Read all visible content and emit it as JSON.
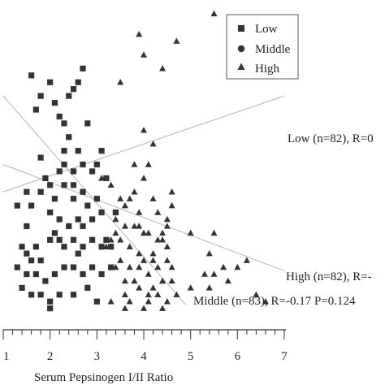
{
  "chart_data": {
    "type": "scatter",
    "title": "",
    "xlabel": "Serum Pepsinogen I/II Ratio",
    "ylabel": "",
    "xlim": [
      1,
      7
    ],
    "xticks": [
      "1",
      "2",
      "3",
      "4",
      "5",
      "6",
      "7"
    ],
    "legend_position": "top-right",
    "legend": [
      {
        "label": "Low",
        "marker": "square"
      },
      {
        "label": "Middle",
        "marker": "circle"
      },
      {
        "label": "High",
        "marker": "triangle"
      }
    ],
    "marker_color": "#333333",
    "line_color": "#b3b3b3",
    "annotations": [
      {
        "text": "Low (n=82), R=0"
      },
      {
        "text": "High (n=82), R=-"
      },
      {
        "text": "Middle (n=83), R=-0.17 P=0.124"
      }
    ],
    "series": [
      {
        "name": "Low",
        "marker": "square",
        "points": [
          [
            1.7,
            3.2
          ],
          [
            1.8,
            3.4
          ],
          [
            2.0,
            2.1
          ],
          [
            2.1,
            3.3
          ],
          [
            2.2,
            1.3
          ],
          [
            2.2,
            3.1
          ],
          [
            2.3,
            2.1
          ],
          [
            2.4,
            3.4
          ],
          [
            1.6,
            3.7
          ],
          [
            2.0,
            3.6
          ],
          [
            2.7,
            3.8
          ],
          [
            2.6,
            3.6
          ],
          [
            2.5,
            3.5
          ],
          [
            2.3,
            3.0
          ],
          [
            2.4,
            2.8
          ],
          [
            2.6,
            1.1
          ],
          [
            2.7,
            2.4
          ],
          [
            2.5,
            2.3
          ],
          [
            2.2,
            2.3
          ],
          [
            2.3,
            2.6
          ],
          [
            2.8,
            3.0
          ],
          [
            2.9,
            2.3
          ],
          [
            3.0,
            2.4
          ],
          [
            3.1,
            2.6
          ],
          [
            3.2,
            2.2
          ],
          [
            2.3,
            2.4
          ],
          [
            2.5,
            2.1
          ],
          [
            2.7,
            2.0
          ],
          [
            2.1,
            1.9
          ],
          [
            1.9,
            2.2
          ],
          [
            1.5,
            2.0
          ],
          [
            1.6,
            1.8
          ],
          [
            1.8,
            2.0
          ],
          [
            2.0,
            1.7
          ],
          [
            2.2,
            1.6
          ],
          [
            2.4,
            1.5
          ],
          [
            2.6,
            1.6
          ],
          [
            2.8,
            1.8
          ],
          [
            3.0,
            1.9
          ],
          [
            1.8,
            2.5
          ],
          [
            2.5,
            1.9
          ],
          [
            2.7,
            1.5
          ],
          [
            2.9,
            1.6
          ],
          [
            3.1,
            1.7
          ],
          [
            3.2,
            1.3
          ],
          [
            3.4,
            1.7
          ],
          [
            1.5,
            1.5
          ],
          [
            2.6,
            2.6
          ],
          [
            1.3,
            1.8
          ],
          [
            1.4,
            1.2
          ],
          [
            1.5,
            1.1
          ],
          [
            1.6,
            1.0
          ],
          [
            1.7,
            1.2
          ],
          [
            1.8,
            1.0
          ],
          [
            2.0,
            1.3
          ],
          [
            2.1,
            1.4
          ],
          [
            2.3,
            1.2
          ],
          [
            2.5,
            1.3
          ],
          [
            2.7,
            1.2
          ],
          [
            2.9,
            1.3
          ],
          [
            3.1,
            1.2
          ],
          [
            3.3,
            1.2
          ],
          [
            1.3,
            0.9
          ],
          [
            1.5,
            0.8
          ],
          [
            1.7,
            0.8
          ],
          [
            1.9,
            0.7
          ],
          [
            2.1,
            0.8
          ],
          [
            2.3,
            0.9
          ],
          [
            2.5,
            0.9
          ],
          [
            2.7,
            0.8
          ],
          [
            2.9,
            0.9
          ],
          [
            3.1,
            0.8
          ],
          [
            3.3,
            0.9
          ],
          [
            1.4,
            0.6
          ],
          [
            1.6,
            0.5
          ],
          [
            1.8,
            0.5
          ],
          [
            2.0,
            0.4
          ],
          [
            2.2,
            0.5
          ],
          [
            2.5,
            0.5
          ],
          [
            2.8,
            0.6
          ],
          [
            3.0,
            0.4
          ],
          [
            2.0,
            0.3
          ]
        ]
      },
      {
        "name": "High",
        "marker": "triangle",
        "points": [
          [
            4.0,
            4.0
          ],
          [
            4.4,
            3.8
          ],
          [
            3.5,
            3.6
          ],
          [
            4.0,
            2.9
          ],
          [
            4.2,
            2.7
          ],
          [
            3.8,
            2.4
          ],
          [
            4.0,
            2.2
          ],
          [
            3.5,
            1.9
          ],
          [
            3.6,
            1.8
          ],
          [
            3.7,
            1.9
          ],
          [
            4.3,
            1.7
          ],
          [
            4.5,
            1.6
          ],
          [
            4.5,
            1.5
          ],
          [
            4.4,
            1.4
          ],
          [
            3.8,
            1.5
          ],
          [
            3.9,
            1.5
          ],
          [
            4.0,
            1.4
          ],
          [
            4.1,
            1.4
          ],
          [
            4.3,
            1.3
          ],
          [
            4.5,
            1.2
          ],
          [
            4.2,
            1.1
          ],
          [
            3.9,
            1.1
          ],
          [
            3.7,
            1.2
          ],
          [
            3.5,
            1.3
          ],
          [
            4.0,
            1.0
          ],
          [
            4.2,
            1.0
          ],
          [
            4.3,
            0.9
          ],
          [
            4.1,
            0.8
          ],
          [
            3.9,
            0.9
          ],
          [
            3.7,
            0.9
          ],
          [
            3.5,
            1.0
          ],
          [
            4.4,
            0.7
          ],
          [
            4.6,
            0.7
          ],
          [
            4.2,
            0.6
          ],
          [
            4.1,
            0.5
          ],
          [
            3.9,
            0.6
          ],
          [
            3.8,
            0.7
          ],
          [
            4.1,
            0.4
          ],
          [
            4.0,
            0.3
          ],
          [
            3.6,
            0.7
          ],
          [
            3.4,
            1.4
          ],
          [
            3.3,
            1.3
          ],
          [
            4.4,
            1.3
          ],
          [
            4.5,
            1.0
          ],
          [
            5.0,
            1.4
          ],
          [
            5.5,
            1.4
          ],
          [
            4.6,
            1.8
          ],
          [
            4.2,
            1.9
          ],
          [
            4.6,
            2.0
          ],
          [
            4.1,
            2.4
          ],
          [
            3.8,
            2.0
          ],
          [
            3.6,
            1.5
          ],
          [
            3.4,
            1.6
          ],
          [
            3.2,
            1.2
          ],
          [
            3.4,
            0.9
          ],
          [
            3.6,
            0.5
          ],
          [
            3.3,
            0.4
          ],
          [
            3.6,
            0.3
          ],
          [
            3.7,
            0.4
          ],
          [
            4.3,
            0.5
          ],
          [
            4.4,
            0.3
          ],
          [
            4.5,
            0.4
          ],
          [
            4.7,
            0.5
          ],
          [
            5.0,
            0.6
          ],
          [
            5.4,
            0.6
          ],
          [
            5.8,
            0.7
          ],
          [
            5.7,
            0.9
          ],
          [
            5.5,
            0.8
          ],
          [
            5.4,
            1.1
          ],
          [
            5.3,
            0.8
          ],
          [
            6.2,
            1.0
          ],
          [
            6.4,
            0.5
          ],
          [
            6.6,
            0.4
          ],
          [
            6.0,
            0.9
          ],
          [
            4.4,
            0.7
          ],
          [
            4.6,
            0.9
          ],
          [
            3.9,
            1.7
          ],
          [
            3.3,
            2.1
          ],
          [
            3.1,
            2.2
          ],
          [
            3.9,
            4.3
          ],
          [
            4.7,
            4.2
          ],
          [
            5.5,
            4.6
          ]
        ]
      }
    ]
  }
}
